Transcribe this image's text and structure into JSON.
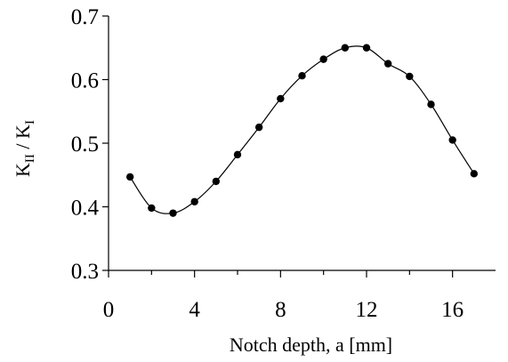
{
  "chart_data": {
    "type": "scatter",
    "title": "",
    "xlabel": "Notch depth, a [mm]",
    "ylabel": {
      "base": "K",
      "sub1": "II",
      "sep": " / ",
      "base2": "K",
      "sub2": "I"
    },
    "xlim": [
      0,
      18
    ],
    "ylim": [
      0.3,
      0.7
    ],
    "xticks_major": [
      0,
      4,
      8,
      12,
      16
    ],
    "xticks_minor": [
      2,
      6,
      10,
      14
    ],
    "yticks": [
      0.3,
      0.4,
      0.5,
      0.6,
      0.7
    ],
    "xtick_labels": [
      "0",
      "4",
      "8",
      "12",
      "16"
    ],
    "ytick_labels": [
      "0.3",
      "0.4",
      "0.5",
      "0.6",
      "0.7"
    ],
    "grid": false,
    "legend": "none",
    "smooth_line": true,
    "series": [
      {
        "x": [
          1,
          2,
          3,
          4,
          5,
          6,
          7,
          8,
          9,
          10,
          11,
          12,
          13,
          14,
          15,
          16,
          17
        ],
        "values": [
          0.447,
          0.398,
          0.39,
          0.408,
          0.44,
          0.482,
          0.525,
          0.57,
          0.606,
          0.632,
          0.65,
          0.65,
          0.625,
          0.605,
          0.561,
          0.505,
          0.452
        ]
      }
    ]
  }
}
